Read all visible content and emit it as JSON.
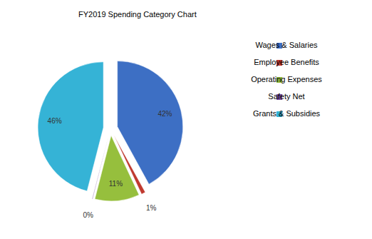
{
  "chart_data": {
    "type": "pie",
    "title": "FY2019 Spending Category Chart",
    "categories": [
      "Wages & Salaries",
      "Employee Benefits",
      "Operating Expenses",
      "Safety Net",
      "Grants & Subsidies"
    ],
    "values": [
      42,
      1,
      11,
      0,
      46
    ],
    "value_labels": [
      "42%",
      "1%",
      "11%",
      "0%",
      "46%"
    ],
    "colors": [
      "#3d6fc4",
      "#c0392f",
      "#96bf3d",
      "#7a4fa3",
      "#35b3d6"
    ],
    "data_labels": true,
    "legend": "right"
  }
}
